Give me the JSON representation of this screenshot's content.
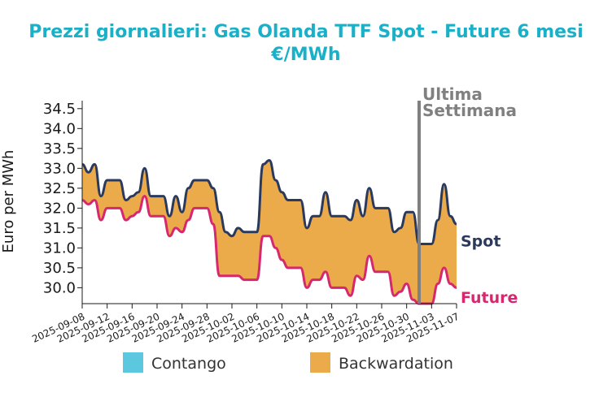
{
  "chart_data": {
    "type": "area",
    "title": "Prezzi giornalieri: Gas Olanda TTF Spot - Future 6 mesi",
    "subtitle": "€/MWh",
    "ylabel": "Euro per MWh",
    "ylim": [
      29.6,
      34.7
    ],
    "yticks": [
      "30.0",
      "30.5",
      "31.0",
      "31.5",
      "32.0",
      "32.5",
      "33.0",
      "33.5",
      "34.0",
      "34.5"
    ],
    "xlim": [
      "2025-09-08",
      "2025-11-07"
    ],
    "xticks": [
      "2025-09-08",
      "2025-09-12",
      "2025-09-16",
      "2025-09-20",
      "2025-09-24",
      "2025-09-28",
      "2025-10-02",
      "2025-10-06",
      "2025-10-10",
      "2025-10-14",
      "2025-10-18",
      "2025-10-22",
      "2025-10-26",
      "2025-10-30",
      "2025-11-03",
      "2025-11-07"
    ],
    "series": [
      {
        "name": "Spot",
        "color": "#2b3a5c",
        "points": [
          [
            "2025-09-08",
            33.1
          ],
          [
            "2025-09-09",
            32.9
          ],
          [
            "2025-09-10",
            33.1
          ],
          [
            "2025-09-11",
            32.3
          ],
          [
            "2025-09-12",
            32.7
          ],
          [
            "2025-09-13",
            32.7
          ],
          [
            "2025-09-14",
            32.7
          ],
          [
            "2025-09-15",
            32.2
          ],
          [
            "2025-09-16",
            32.3
          ],
          [
            "2025-09-17",
            32.4
          ],
          [
            "2025-09-18",
            33.0
          ],
          [
            "2025-09-19",
            32.3
          ],
          [
            "2025-09-20",
            32.3
          ],
          [
            "2025-09-21",
            32.3
          ],
          [
            "2025-09-22",
            31.8
          ],
          [
            "2025-09-23",
            32.3
          ],
          [
            "2025-09-24",
            31.9
          ],
          [
            "2025-09-25",
            32.5
          ],
          [
            "2025-09-26",
            32.7
          ],
          [
            "2025-09-27",
            32.7
          ],
          [
            "2025-09-28",
            32.7
          ],
          [
            "2025-09-29",
            32.5
          ],
          [
            "2025-09-30",
            31.9
          ],
          [
            "2025-10-01",
            31.4
          ],
          [
            "2025-10-02",
            31.3
          ],
          [
            "2025-10-03",
            31.5
          ],
          [
            "2025-10-04",
            31.4
          ],
          [
            "2025-10-05",
            31.4
          ],
          [
            "2025-10-06",
            31.4
          ],
          [
            "2025-10-07",
            33.1
          ],
          [
            "2025-10-08",
            33.2
          ],
          [
            "2025-10-09",
            32.7
          ],
          [
            "2025-10-10",
            32.4
          ],
          [
            "2025-10-11",
            32.2
          ],
          [
            "2025-10-12",
            32.2
          ],
          [
            "2025-10-13",
            32.2
          ],
          [
            "2025-10-14",
            31.5
          ],
          [
            "2025-10-15",
            31.8
          ],
          [
            "2025-10-16",
            31.8
          ],
          [
            "2025-10-17",
            32.4
          ],
          [
            "2025-10-18",
            31.8
          ],
          [
            "2025-10-19",
            31.8
          ],
          [
            "2025-10-20",
            31.8
          ],
          [
            "2025-10-21",
            31.7
          ],
          [
            "2025-10-22",
            32.2
          ],
          [
            "2025-10-23",
            31.8
          ],
          [
            "2025-10-24",
            32.5
          ],
          [
            "2025-10-25",
            32.0
          ],
          [
            "2025-10-26",
            32.0
          ],
          [
            "2025-10-27",
            32.0
          ],
          [
            "2025-10-28",
            31.4
          ],
          [
            "2025-10-29",
            31.5
          ],
          [
            "2025-10-30",
            31.9
          ],
          [
            "2025-10-31",
            31.9
          ],
          [
            "2025-11-01",
            31.1
          ],
          [
            "2025-11-02",
            31.1
          ],
          [
            "2025-11-03",
            31.1
          ],
          [
            "2025-11-04",
            31.7
          ],
          [
            "2025-11-05",
            32.6
          ],
          [
            "2025-11-06",
            31.8
          ],
          [
            "2025-11-07",
            31.6
          ],
          [
            "2025-11-08",
            31.2
          ]
        ]
      },
      {
        "name": "Future",
        "color": "#d6286e",
        "points": [
          [
            "2025-09-08",
            32.2
          ],
          [
            "2025-09-09",
            32.1
          ],
          [
            "2025-09-10",
            32.2
          ],
          [
            "2025-09-11",
            31.7
          ],
          [
            "2025-09-12",
            32.0
          ],
          [
            "2025-09-13",
            32.0
          ],
          [
            "2025-09-14",
            32.0
          ],
          [
            "2025-09-15",
            31.7
          ],
          [
            "2025-09-16",
            31.8
          ],
          [
            "2025-09-17",
            31.9
          ],
          [
            "2025-09-18",
            32.3
          ],
          [
            "2025-09-19",
            31.8
          ],
          [
            "2025-09-20",
            31.8
          ],
          [
            "2025-09-21",
            31.8
          ],
          [
            "2025-09-22",
            31.3
          ],
          [
            "2025-09-23",
            31.5
          ],
          [
            "2025-09-24",
            31.4
          ],
          [
            "2025-09-25",
            31.7
          ],
          [
            "2025-09-26",
            32.0
          ],
          [
            "2025-09-27",
            32.0
          ],
          [
            "2025-09-28",
            32.0
          ],
          [
            "2025-09-29",
            31.6
          ],
          [
            "2025-09-30",
            30.3
          ],
          [
            "2025-10-01",
            30.3
          ],
          [
            "2025-10-02",
            30.3
          ],
          [
            "2025-10-03",
            30.3
          ],
          [
            "2025-10-04",
            30.2
          ],
          [
            "2025-10-05",
            30.2
          ],
          [
            "2025-10-06",
            30.2
          ],
          [
            "2025-10-07",
            31.3
          ],
          [
            "2025-10-08",
            31.3
          ],
          [
            "2025-10-09",
            31.0
          ],
          [
            "2025-10-10",
            30.7
          ],
          [
            "2025-10-11",
            30.5
          ],
          [
            "2025-10-12",
            30.5
          ],
          [
            "2025-10-13",
            30.5
          ],
          [
            "2025-10-14",
            30.0
          ],
          [
            "2025-10-15",
            30.2
          ],
          [
            "2025-10-16",
            30.2
          ],
          [
            "2025-10-17",
            30.4
          ],
          [
            "2025-10-18",
            30.0
          ],
          [
            "2025-10-19",
            30.0
          ],
          [
            "2025-10-20",
            30.0
          ],
          [
            "2025-10-21",
            29.8
          ],
          [
            "2025-10-22",
            30.3
          ],
          [
            "2025-10-23",
            30.2
          ],
          [
            "2025-10-24",
            30.8
          ],
          [
            "2025-10-25",
            30.4
          ],
          [
            "2025-10-26",
            30.4
          ],
          [
            "2025-10-27",
            30.4
          ],
          [
            "2025-10-28",
            29.8
          ],
          [
            "2025-10-29",
            29.9
          ],
          [
            "2025-10-30",
            30.1
          ],
          [
            "2025-10-31",
            29.7
          ],
          [
            "2025-11-01",
            29.6
          ],
          [
            "2025-11-02",
            29.6
          ],
          [
            "2025-11-03",
            29.6
          ],
          [
            "2025-11-04",
            30.1
          ],
          [
            "2025-11-05",
            30.5
          ],
          [
            "2025-11-06",
            30.1
          ],
          [
            "2025-11-07",
            30.0
          ],
          [
            "2025-11-08",
            29.7
          ]
        ]
      }
    ],
    "annotation": {
      "line1": "Ultima",
      "line2": "Settimana",
      "x": "2025-11-01",
      "color": "#808080"
    },
    "legend": {
      "placement": "bottom",
      "items": [
        {
          "label": "Contango",
          "color": "#5bc8df"
        },
        {
          "label": "Backwardation",
          "color": "#ebab4b"
        }
      ]
    },
    "grid": false
  }
}
